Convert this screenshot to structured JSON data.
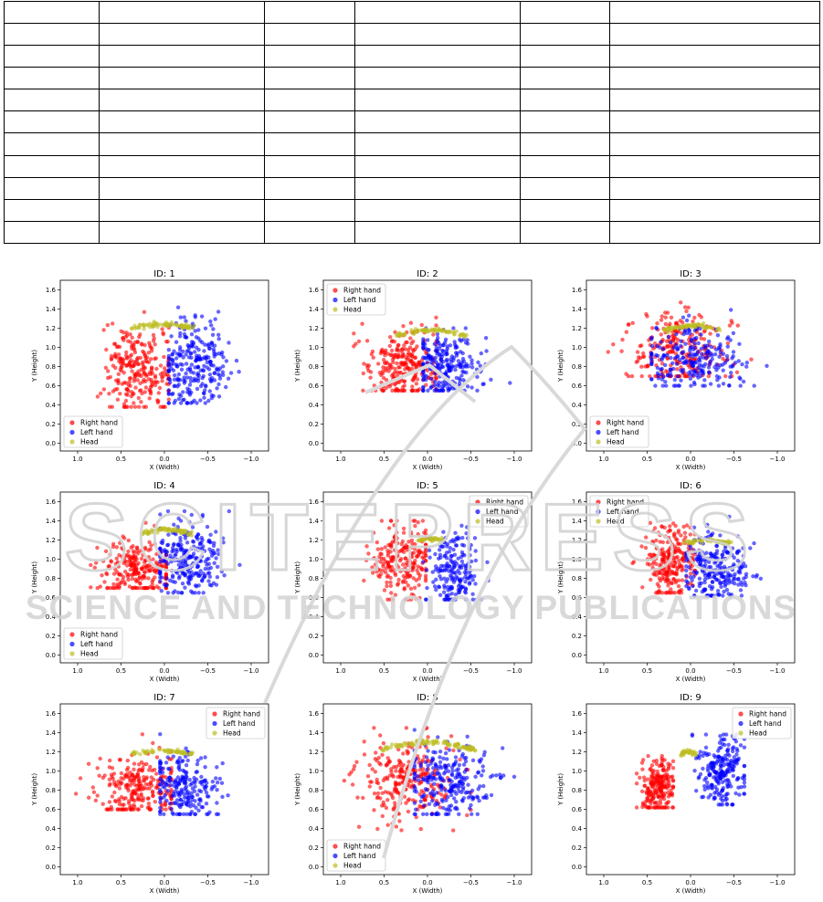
{
  "table": {
    "rows": 11,
    "cols": 6
  },
  "watermark": {
    "text_top": "SCITEPRESS",
    "text_bottom": "SCIENCE AND TECHNOLOGY PUBLICATIONS",
    "color": "#d3d3d3"
  },
  "chart_data": [
    {
      "id": 1,
      "title": "ID: 1",
      "type": "scatter",
      "xlabel": "X (Width)",
      "ylabel": "Y (Height)",
      "xlim": [
        1.2,
        -1.2
      ],
      "ylim": [
        -0.08,
        1.7
      ],
      "xticks": [
        "1.0",
        "0.5",
        "0.0",
        "−0.5",
        "−1.0"
      ],
      "yticks": [
        "0.0",
        "0.2",
        "0.4",
        "0.6",
        "0.8",
        "1.0",
        "1.2",
        "1.4",
        "1.6"
      ],
      "legend": "lower-left",
      "series": [
        {
          "name": "Right hand",
          "color": "#ff0000",
          "cx": 0.3,
          "cy": 0.78,
          "sx": 0.2,
          "sy": 0.22,
          "n": 260,
          "xr": [
            -0.05,
            0.95
          ],
          "yr": [
            0.38,
            1.56
          ]
        },
        {
          "name": "Left hand",
          "color": "#0000ff",
          "cx": -0.35,
          "cy": 0.8,
          "sx": 0.2,
          "sy": 0.22,
          "n": 260,
          "xr": [
            -0.92,
            -0.05
          ],
          "yr": [
            0.42,
            1.5
          ]
        },
        {
          "name": "Head",
          "color": "#bcbd22",
          "arc": {
            "x0": 0.37,
            "x1": -0.35,
            "y": 1.2,
            "amp": 0.04
          },
          "n": 70
        }
      ]
    },
    {
      "id": 2,
      "title": "ID: 2",
      "type": "scatter",
      "xlabel": "X (Width)",
      "ylabel": "Y (Height)",
      "xlim": [
        1.2,
        -1.2
      ],
      "ylim": [
        -0.08,
        1.7
      ],
      "xticks": [
        "1.0",
        "0.5",
        "0.0",
        "−0.5",
        "−1.0"
      ],
      "yticks": [
        "0.0",
        "0.2",
        "0.4",
        "0.6",
        "0.8",
        "1.0",
        "1.2",
        "1.4",
        "1.6"
      ],
      "legend": "upper-left",
      "series": [
        {
          "name": "Right hand",
          "color": "#ff0000",
          "cx": 0.3,
          "cy": 0.82,
          "sx": 0.22,
          "sy": 0.2,
          "n": 260,
          "xr": [
            -0.1,
            0.85
          ],
          "yr": [
            0.55,
            1.52
          ]
        },
        {
          "name": "Left hand",
          "color": "#0000ff",
          "cx": -0.2,
          "cy": 0.82,
          "sx": 0.2,
          "sy": 0.18,
          "n": 240,
          "xr": [
            -0.95,
            0.05
          ],
          "yr": [
            0.55,
            1.2
          ]
        },
        {
          "name": "Head",
          "color": "#bcbd22",
          "arc": {
            "x0": 0.38,
            "x1": -0.45,
            "y": 1.12,
            "amp": 0.06
          },
          "n": 70
        }
      ]
    },
    {
      "id": 3,
      "title": "ID: 3",
      "type": "scatter",
      "xlabel": "X (Width)",
      "ylabel": "Y (Height)",
      "xlim": [
        1.2,
        -1.2
      ],
      "ylim": [
        -0.08,
        1.7
      ],
      "xticks": [
        "1.0",
        "0.5",
        "0.0",
        "−0.5",
        "−1.0"
      ],
      "yticks": [
        "0.0",
        "0.2",
        "0.4",
        "0.6",
        "0.8",
        "1.0",
        "1.2",
        "1.4",
        "1.6"
      ],
      "legend": "lower-left",
      "series": [
        {
          "name": "Right hand",
          "color": "#ff0000",
          "cx": 0.15,
          "cy": 0.95,
          "sx": 0.3,
          "sy": 0.2,
          "n": 240,
          "xr": [
            -0.7,
            0.95
          ],
          "yr": [
            0.7,
            1.5
          ]
        },
        {
          "name": "Left hand",
          "color": "#0000ff",
          "cx": -0.05,
          "cy": 0.88,
          "sx": 0.3,
          "sy": 0.18,
          "n": 240,
          "xr": [
            -0.95,
            0.45
          ],
          "yr": [
            0.6,
            1.5
          ]
        },
        {
          "name": "Head",
          "color": "#bcbd22",
          "arc": {
            "x0": 0.3,
            "x1": -0.35,
            "y": 1.18,
            "amp": 0.05
          },
          "n": 70
        }
      ]
    },
    {
      "id": 4,
      "title": "ID: 4",
      "type": "scatter",
      "xlabel": "X (Width)",
      "ylabel": "Y (Height)",
      "xlim": [
        1.2,
        -1.2
      ],
      "ylim": [
        -0.08,
        1.7
      ],
      "xticks": [
        "1.0",
        "0.5",
        "0.0",
        "−0.5",
        "−1.0"
      ],
      "yticks": [
        "0.0",
        "0.2",
        "0.4",
        "0.6",
        "0.8",
        "1.0",
        "1.2",
        "1.4",
        "1.6"
      ],
      "legend": "lower-left",
      "series": [
        {
          "name": "Right hand",
          "color": "#ff0000",
          "cx": 0.3,
          "cy": 0.9,
          "sx": 0.22,
          "sy": 0.15,
          "n": 240,
          "xr": [
            -0.02,
            0.85
          ],
          "yr": [
            0.7,
            1.45
          ]
        },
        {
          "name": "Left hand",
          "color": "#0000ff",
          "cx": -0.28,
          "cy": 1.0,
          "sx": 0.2,
          "sy": 0.2,
          "n": 260,
          "xr": [
            -0.95,
            0.05
          ],
          "yr": [
            0.65,
            1.5
          ]
        },
        {
          "name": "Head",
          "color": "#bcbd22",
          "arc": {
            "x0": 0.27,
            "x1": -0.32,
            "y": 1.26,
            "amp": 0.05
          },
          "n": 70
        }
      ]
    },
    {
      "id": 5,
      "title": "ID: 5",
      "type": "scatter",
      "xlabel": "X (Width)",
      "ylabel": "Y (Height)",
      "xlim": [
        1.2,
        -1.2
      ],
      "ylim": [
        -0.08,
        1.7
      ],
      "xticks": [
        "1.0",
        "0.5",
        "0.0",
        "−0.5",
        "−1.0"
      ],
      "yticks": [
        "0.0",
        "0.2",
        "0.4",
        "0.6",
        "0.8",
        "1.0",
        "1.2",
        "1.4",
        "1.6"
      ],
      "legend": "upper-right",
      "series": [
        {
          "name": "Right hand",
          "color": "#ff0000",
          "cx": 0.3,
          "cy": 1.0,
          "sx": 0.18,
          "sy": 0.2,
          "n": 230,
          "xr": [
            0.02,
            0.85
          ],
          "yr": [
            0.58,
            1.4
          ]
        },
        {
          "name": "Left hand",
          "color": "#0000ff",
          "cx": -0.3,
          "cy": 0.88,
          "sx": 0.15,
          "sy": 0.22,
          "n": 200,
          "xr": [
            -0.7,
            0.05
          ],
          "yr": [
            0.58,
            1.35
          ]
        },
        {
          "name": "Head",
          "color": "#bcbd22",
          "arc": {
            "x0": 0.12,
            "x1": -0.18,
            "y": 1.19,
            "amp": 0.02
          },
          "n": 35
        }
      ]
    },
    {
      "id": 6,
      "title": "ID: 6",
      "type": "scatter",
      "xlabel": "X (Width)",
      "ylabel": "Y (Height)",
      "xlim": [
        1.2,
        -1.2
      ],
      "ylim": [
        -0.08,
        1.7
      ],
      "xticks": [
        "1.0",
        "0.5",
        "0.0",
        "−0.5",
        "−1.0"
      ],
      "yticks": [
        "0.0",
        "0.2",
        "0.4",
        "0.6",
        "0.8",
        "1.0",
        "1.2",
        "1.4",
        "1.6"
      ],
      "legend": "upper-left",
      "series": [
        {
          "name": "Right hand",
          "color": "#ff0000",
          "cx": 0.22,
          "cy": 1.0,
          "sx": 0.15,
          "sy": 0.2,
          "n": 240,
          "xr": [
            -0.05,
            0.75
          ],
          "yr": [
            0.65,
            1.45
          ]
        },
        {
          "name": "Left hand",
          "color": "#0000ff",
          "cx": -0.3,
          "cy": 0.9,
          "sx": 0.2,
          "sy": 0.18,
          "n": 250,
          "xr": [
            -0.9,
            0.05
          ],
          "yr": [
            0.62,
            1.45
          ]
        },
        {
          "name": "Head",
          "color": "#bcbd22",
          "arc": {
            "x0": 0.08,
            "x1": -0.45,
            "y": 1.17,
            "amp": 0.03
          },
          "n": 55
        }
      ]
    },
    {
      "id": 7,
      "title": "ID: 7",
      "type": "scatter",
      "xlabel": "X (Width)",
      "ylabel": "Y (Height)",
      "xlim": [
        1.2,
        -1.2
      ],
      "ylim": [
        -0.08,
        1.7
      ],
      "xticks": [
        "1.0",
        "0.5",
        "0.0",
        "−0.5",
        "−1.0"
      ],
      "yticks": [
        "0.0",
        "0.2",
        "0.4",
        "0.6",
        "0.8",
        "1.0",
        "1.2",
        "1.4",
        "1.6"
      ],
      "legend": "upper-right",
      "series": [
        {
          "name": "Right hand",
          "color": "#ff0000",
          "cx": 0.3,
          "cy": 0.85,
          "sx": 0.25,
          "sy": 0.18,
          "n": 250,
          "xr": [
            -0.08,
            1.02
          ],
          "yr": [
            0.6,
            1.45
          ]
        },
        {
          "name": "Left hand",
          "color": "#0000ff",
          "cx": -0.22,
          "cy": 0.85,
          "sx": 0.2,
          "sy": 0.18,
          "n": 220,
          "xr": [
            -0.9,
            0.05
          ],
          "yr": [
            0.55,
            1.4
          ]
        },
        {
          "name": "Head",
          "color": "#bcbd22",
          "arc": {
            "x0": 0.38,
            "x1": -0.32,
            "y": 1.18,
            "amp": 0.03
          },
          "n": 60
        }
      ]
    },
    {
      "id": 8,
      "title": "ID: 8",
      "type": "scatter",
      "xlabel": "X (Width)",
      "ylabel": "Y (Height)",
      "xlim": [
        1.2,
        -1.2
      ],
      "ylim": [
        -0.08,
        1.7
      ],
      "xticks": [
        "1.0",
        "0.5",
        "0.0",
        "−0.5",
        "−1.0"
      ],
      "yticks": [
        "0.0",
        "0.2",
        "0.4",
        "0.6",
        "0.8",
        "1.0",
        "1.2",
        "1.4",
        "1.6"
      ],
      "legend": "lower-left",
      "series": [
        {
          "name": "Right hand",
          "color": "#ff0000",
          "cx": 0.25,
          "cy": 0.9,
          "sx": 0.3,
          "sy": 0.22,
          "n": 260,
          "xr": [
            -0.5,
            1.0
          ],
          "yr": [
            0.35,
            1.45
          ]
        },
        {
          "name": "Left hand",
          "color": "#0000ff",
          "cx": -0.25,
          "cy": 0.9,
          "sx": 0.25,
          "sy": 0.2,
          "n": 250,
          "xr": [
            -1.0,
            0.15
          ],
          "yr": [
            0.55,
            1.45
          ]
        },
        {
          "name": "Head",
          "color": "#bcbd22",
          "arc": {
            "x0": 0.52,
            "x1": -0.55,
            "y": 1.22,
            "amp": 0.08
          },
          "n": 110
        }
      ]
    },
    {
      "id": 9,
      "title": "ID: 9",
      "type": "scatter",
      "xlabel": "X (Width)",
      "ylabel": "Y (Height)",
      "xlim": [
        1.2,
        -1.2
      ],
      "ylim": [
        -0.08,
        1.7
      ],
      "xticks": [
        "1.0",
        "0.5",
        "0.0",
        "−0.5",
        "−1.0"
      ],
      "yticks": [
        "0.0",
        "0.2",
        "0.4",
        "0.6",
        "0.8",
        "1.0",
        "1.2",
        "1.4",
        "1.6"
      ],
      "legend": "upper-right",
      "series": [
        {
          "name": "Right hand",
          "color": "#ff0000",
          "cx": 0.38,
          "cy": 0.82,
          "sx": 0.1,
          "sy": 0.15,
          "n": 220,
          "xr": [
            0.2,
            0.62
          ],
          "yr": [
            0.62,
            1.3
          ]
        },
        {
          "name": "Left hand",
          "color": "#0000ff",
          "cx": -0.38,
          "cy": 1.0,
          "sx": 0.14,
          "sy": 0.18,
          "n": 230,
          "xr": [
            -0.62,
            -0.02
          ],
          "yr": [
            0.65,
            1.38
          ]
        },
        {
          "name": "Head",
          "color": "#bcbd22",
          "arc": {
            "x0": 0.1,
            "x1": -0.08,
            "y": 1.18,
            "amp": 0.02
          },
          "n": 30
        }
      ]
    }
  ]
}
